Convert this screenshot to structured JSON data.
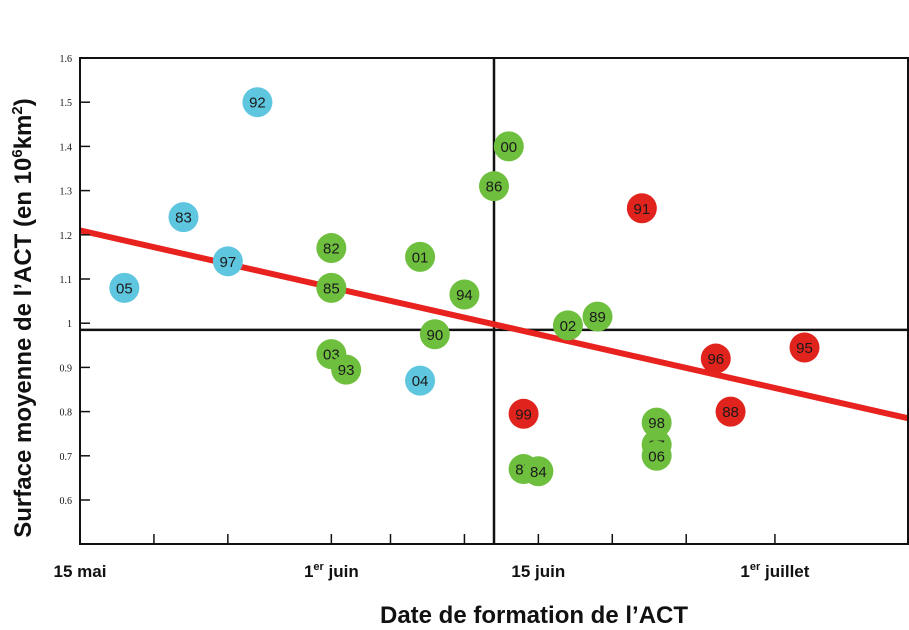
{
  "chart_data": {
    "type": "scatter",
    "xlabel": "Date de formation de l’ACT",
    "ylabel_parts": [
      "Surface moyenne de l’ACT (en 10",
      "6",
      "km",
      "2",
      ")"
    ],
    "xlim": [
      "2000-05-15",
      "2000-07-10"
    ],
    "ylim": [
      0.5,
      1.6
    ],
    "x_ticks": [
      {
        "date": "2000-05-15",
        "label": "15 mai"
      },
      {
        "date": "2000-05-20",
        "label": ""
      },
      {
        "date": "2000-05-25",
        "label": ""
      },
      {
        "date": "2000-06-01",
        "label": "1",
        "sup": "er",
        "rest": " juin"
      },
      {
        "date": "2000-06-05",
        "label": ""
      },
      {
        "date": "2000-06-10",
        "label": ""
      },
      {
        "date": "2000-06-15",
        "label": "15 juin"
      },
      {
        "date": "2000-06-20",
        "label": ""
      },
      {
        "date": "2000-06-25",
        "label": ""
      },
      {
        "date": "2000-07-01",
        "label": "1",
        "sup": "er",
        "rest": "  juillet"
      }
    ],
    "y_ticks": [
      "0.6",
      "0.7",
      "0.8",
      "0.9",
      "1",
      "1.1",
      "1.2",
      "1.3",
      "1.4",
      "1.5",
      "1.6"
    ],
    "reference_lines": {
      "x": "2000-06-12",
      "y": 0.985
    },
    "trend_line": {
      "color": "#e8231f",
      "points": [
        [
          "2000-05-15",
          1.21
        ],
        [
          "2000-07-10",
          0.785
        ]
      ]
    },
    "colors": {
      "blue": "#5fc6e0",
      "green": "#6fbf3f",
      "red": "#e0231d"
    },
    "points": [
      {
        "label": "05",
        "x": "2000-05-18",
        "y": 1.08,
        "color": "blue"
      },
      {
        "label": "83",
        "x": "2000-05-22",
        "y": 1.24,
        "color": "blue"
      },
      {
        "label": "97",
        "x": "2000-05-25",
        "y": 1.14,
        "color": "blue"
      },
      {
        "label": "92",
        "x": "2000-05-27",
        "y": 1.5,
        "color": "blue"
      },
      {
        "label": "04",
        "x": "2000-06-07",
        "y": 0.87,
        "color": "blue"
      },
      {
        "label": "82",
        "x": "2000-06-01",
        "y": 1.17,
        "color": "green"
      },
      {
        "label": "85",
        "x": "2000-06-01",
        "y": 1.08,
        "color": "green"
      },
      {
        "label": "03",
        "x": "2000-06-01",
        "y": 0.93,
        "color": "green"
      },
      {
        "label": "93",
        "x": "2000-06-02",
        "y": 0.895,
        "color": "green"
      },
      {
        "label": "01",
        "x": "2000-06-07",
        "y": 1.15,
        "color": "green"
      },
      {
        "label": "90",
        "x": "2000-06-08",
        "y": 0.975,
        "color": "green"
      },
      {
        "label": "94",
        "x": "2000-06-10",
        "y": 1.065,
        "color": "green"
      },
      {
        "label": "86",
        "x": "2000-06-12",
        "y": 1.31,
        "color": "green"
      },
      {
        "label": "00",
        "x": "2000-06-13",
        "y": 1.4,
        "color": "green"
      },
      {
        "label": "87",
        "x": "2000-06-14",
        "y": 0.67,
        "color": "green"
      },
      {
        "label": "84",
        "x": "2000-06-15",
        "y": 0.665,
        "color": "green"
      },
      {
        "label": "02",
        "x": "2000-06-17",
        "y": 0.995,
        "color": "green"
      },
      {
        "label": "89",
        "x": "2000-06-19",
        "y": 1.015,
        "color": "green"
      },
      {
        "label": "98",
        "x": "2000-06-23",
        "y": 0.775,
        "color": "green"
      },
      {
        "label": "07",
        "x": "2000-06-23",
        "y": 0.725,
        "color": "green"
      },
      {
        "label": "06",
        "x": "2000-06-23",
        "y": 0.7,
        "color": "green"
      },
      {
        "label": "99",
        "x": "2000-06-14",
        "y": 0.795,
        "color": "red"
      },
      {
        "label": "91",
        "x": "2000-06-22",
        "y": 1.26,
        "color": "red"
      },
      {
        "label": "96",
        "x": "2000-06-27",
        "y": 0.92,
        "color": "red"
      },
      {
        "label": "88",
        "x": "2000-06-28",
        "y": 0.8,
        "color": "red"
      },
      {
        "label": "95",
        "x": "2000-07-03",
        "y": 0.945,
        "color": "red"
      }
    ]
  }
}
